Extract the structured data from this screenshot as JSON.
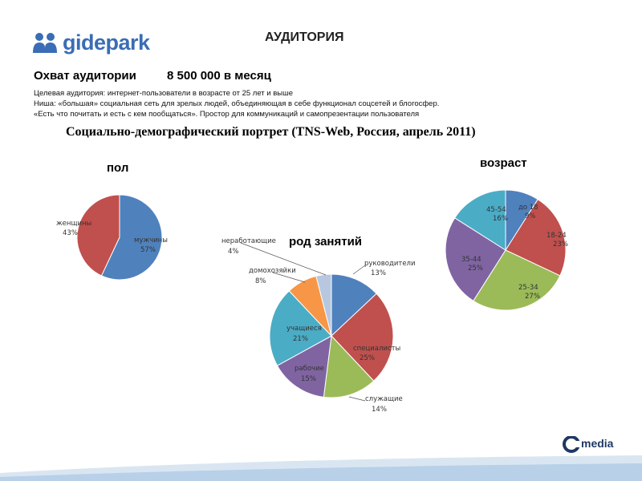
{
  "logo": {
    "text": "gidepark",
    "icon": "people-icon",
    "color": "#3a6db5"
  },
  "title": "АУДИТОРИЯ",
  "reach": {
    "label": "Охват аудитории",
    "value": "8 500 000 в месяц"
  },
  "description": [
    "Целевая аудитория: интернет-пользователи в возрасте от 25 лет и выше",
    "Ниша: «большая» социальная сеть для зрелых людей, объединяющая в себе функционал соцсетей и блогосфер.",
    "«Есть что почитать и есть с кем пообщаться». Простор для коммуникаций и самопрезентации пользователя"
  ],
  "portrait_title": "Социально-демографический портрет  (TNS-Web, Россия, апрель 2011)",
  "footer": {
    "logo_text": "media",
    "logo_icon": "c-media-logo-icon",
    "subtitle": ""
  },
  "chart_data": [
    {
      "type": "pie",
      "title": "пол",
      "slices": [
        {
          "label": "мужчины",
          "value": 57,
          "text": "57%",
          "color": "#4f81bd"
        },
        {
          "label": "женщины",
          "value": 43,
          "text": "43%",
          "color": "#c0504d"
        }
      ]
    },
    {
      "type": "pie",
      "title": "род занятий",
      "slices": [
        {
          "label": "руководители",
          "value": 13,
          "text": "13%",
          "color": "#4f81bd"
        },
        {
          "label": "специалисты",
          "value": 25,
          "text": "25%",
          "color": "#c0504d"
        },
        {
          "label": "служащие",
          "value": 14,
          "text": "14%",
          "color": "#9bbb59"
        },
        {
          "label": "рабочие",
          "value": 15,
          "text": "15%",
          "color": "#8064a2"
        },
        {
          "label": "учащиеся",
          "value": 21,
          "text": "21%",
          "color": "#4bacc6"
        },
        {
          "label": "домохозяйки",
          "value": 8,
          "text": "8%",
          "color": "#f79646"
        },
        {
          "label": "неработающие",
          "value": 4,
          "text": "4%",
          "color": "#b7c7e0"
        }
      ]
    },
    {
      "type": "pie",
      "title": "возраст",
      "slices": [
        {
          "label": "до 18",
          "value": 9,
          "text": "9%",
          "color": "#4f81bd"
        },
        {
          "label": "18-24",
          "value": 23,
          "text": "23%",
          "color": "#c0504d"
        },
        {
          "label": "25-34",
          "value": 27,
          "text": "27%",
          "color": "#9bbb59"
        },
        {
          "label": "35-44",
          "value": 25,
          "text": "25%",
          "color": "#8064a2"
        },
        {
          "label": "45-54",
          "value": 16,
          "text": "16%",
          "color": "#4bacc6"
        }
      ]
    }
  ]
}
